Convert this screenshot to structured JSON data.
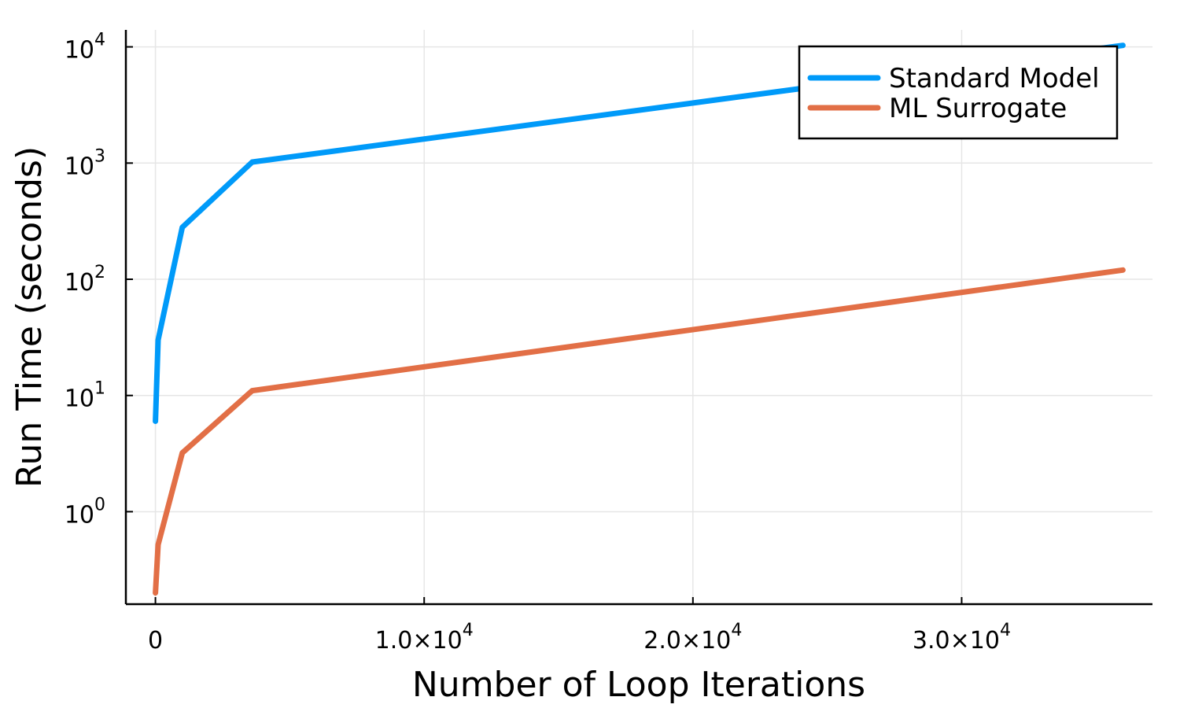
{
  "chart_data": {
    "type": "line",
    "xlabel": "Number of Loop Iterations",
    "ylabel": "Run Time (seconds)",
    "x_scale": "linear",
    "y_scale": "log10",
    "xlim": [
      -1100,
      37100
    ],
    "ylim": [
      0.16,
      14000
    ],
    "x_ticks": [
      {
        "value": 0,
        "label": "0",
        "exp": ""
      },
      {
        "value": 10000,
        "label": "1.0×10",
        "exp": "4"
      },
      {
        "value": 20000,
        "label": "2.0×10",
        "exp": "4"
      },
      {
        "value": 30000,
        "label": "3.0×10",
        "exp": "4"
      }
    ],
    "y_ticks": [
      {
        "value": 1,
        "label": "10",
        "exp": "0"
      },
      {
        "value": 10,
        "label": "10",
        "exp": "1"
      },
      {
        "value": 100,
        "label": "10",
        "exp": "2"
      },
      {
        "value": 1000,
        "label": "10",
        "exp": "3"
      },
      {
        "value": 10000,
        "label": "10",
        "exp": "4"
      }
    ],
    "grid": true,
    "legend_position": "top-right",
    "series": [
      {
        "name": "Standard Model",
        "color": "#009af9",
        "x": [
          0,
          100,
          1000,
          3600,
          36000
        ],
        "y": [
          6,
          30,
          280,
          1020,
          10300
        ]
      },
      {
        "name": "ML Surrogate",
        "color": "#e26f46",
        "x": [
          0,
          100,
          1000,
          3600,
          36000
        ],
        "y": [
          0.2,
          0.52,
          3.2,
          11,
          120
        ]
      }
    ]
  }
}
